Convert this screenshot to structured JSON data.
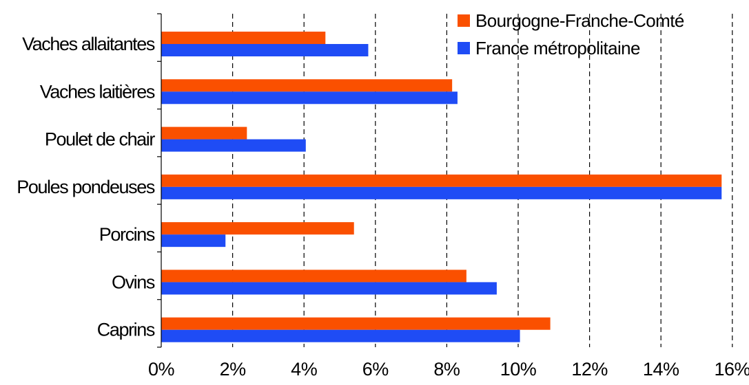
{
  "chart_data": {
    "type": "bar",
    "orientation": "horizontal",
    "categories": [
      "Vaches allaitantes",
      "Vaches laitières",
      "Poulet de chair",
      "Poules pondeuses",
      "Porcins",
      "Ovins",
      "Caprins"
    ],
    "series": [
      {
        "name": "Bourgogne-Franche-Comté",
        "color": "#fa5000",
        "values": [
          4.6,
          8.15,
          2.4,
          15.7,
          5.4,
          8.55,
          10.9
        ]
      },
      {
        "name": "France métropolitaine",
        "color": "#1f4cf5",
        "values": [
          5.8,
          8.3,
          4.05,
          15.7,
          1.8,
          9.4,
          10.05
        ]
      }
    ],
    "xlim": [
      0,
      16
    ],
    "xticks": [
      0,
      2,
      4,
      6,
      8,
      10,
      12,
      14,
      16
    ],
    "xtick_labels": [
      "0%",
      "2%",
      "4%",
      "6%",
      "8%",
      "10%",
      "12%",
      "14%",
      "16%"
    ],
    "grid": "vertical-dashed",
    "legend_position": "top-right",
    "title": "",
    "xlabel": "",
    "ylabel": ""
  }
}
